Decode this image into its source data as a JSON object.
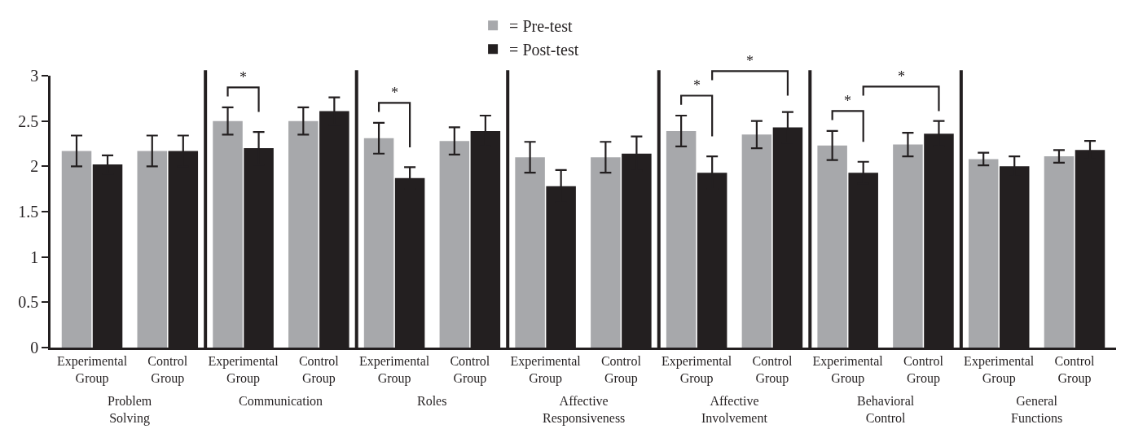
{
  "chart_data": {
    "type": "bar",
    "categories": [
      "Experimental Group",
      "Control Group",
      "Experimental Group",
      "Control Group",
      "Experimental Group",
      "Control Group",
      "Experimental Group",
      "Control Group",
      "Experimental Group",
      "Control Group",
      "Experimental Group",
      "Control Group",
      "Experimental Group",
      "Control Group"
    ],
    "series": [
      {
        "name": "= Pre-test",
        "color": "#a7a8ab",
        "values": [
          2.17,
          2.17,
          2.5,
          2.5,
          2.31,
          2.28,
          2.1,
          2.1,
          2.39,
          2.35,
          2.23,
          2.24,
          2.08,
          2.11
        ],
        "errors": [
          0.17,
          0.17,
          0.15,
          0.15,
          0.17,
          0.15,
          0.17,
          0.17,
          0.17,
          0.15,
          0.16,
          0.13,
          0.07,
          0.07
        ]
      },
      {
        "name": "= Post-test",
        "color": "#231f20",
        "values": [
          2.02,
          2.17,
          2.2,
          2.61,
          1.87,
          2.39,
          1.78,
          2.14,
          1.93,
          2.43,
          1.93,
          2.36,
          2.0,
          2.18
        ],
        "errors": [
          0.1,
          0.17,
          0.18,
          0.15,
          0.12,
          0.17,
          0.18,
          0.19,
          0.18,
          0.17,
          0.12,
          0.14,
          0.11,
          0.1
        ]
      }
    ],
    "ylim": [
      0,
      3
    ],
    "yticks": [
      0,
      0.5,
      1,
      1.5,
      2,
      2.5,
      3
    ],
    "legend": "top",
    "annotations": [
      "Problem Solving",
      "Communication",
      "Roles",
      "Affective Responsiveness",
      "Affective Involvement",
      "Behavioral Control",
      "General Functions",
      "*",
      "*",
      "*",
      "*",
      "*",
      "*"
    ]
  }
}
